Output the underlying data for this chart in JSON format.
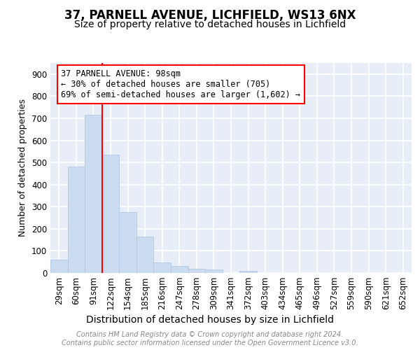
{
  "title_line1": "37, PARNELL AVENUE, LICHFIELD, WS13 6NX",
  "title_line2": "Size of property relative to detached houses in Lichfield",
  "xlabel": "Distribution of detached houses by size in Lichfield",
  "ylabel": "Number of detached properties",
  "categories": [
    "29sqm",
    "60sqm",
    "91sqm",
    "122sqm",
    "154sqm",
    "185sqm",
    "216sqm",
    "247sqm",
    "278sqm",
    "309sqm",
    "341sqm",
    "372sqm",
    "403sqm",
    "434sqm",
    "465sqm",
    "496sqm",
    "527sqm",
    "559sqm",
    "590sqm",
    "621sqm",
    "652sqm"
  ],
  "values": [
    60,
    480,
    715,
    535,
    275,
    165,
    47,
    32,
    20,
    15,
    0,
    10,
    0,
    0,
    0,
    0,
    0,
    0,
    0,
    0,
    0
  ],
  "bar_color": "#ccdcf0",
  "bar_edge_color": "#a8c4e0",
  "red_line_index": 2.5,
  "annotation_text": "37 PARNELL AVENUE: 98sqm\n← 30% of detached houses are smaller (705)\n69% of semi-detached houses are larger (1,602) →",
  "ylim": [
    0,
    950
  ],
  "yticks": [
    0,
    100,
    200,
    300,
    400,
    500,
    600,
    700,
    800,
    900
  ],
  "bg_color": "#e8eef8",
  "grid_color": "#ffffff",
  "footer_text": "Contains HM Land Registry data © Crown copyright and database right 2024.\nContains public sector information licensed under the Open Government Licence v3.0.",
  "title_fontsize": 12,
  "subtitle_fontsize": 10,
  "ylabel_fontsize": 9,
  "xlabel_fontsize": 10,
  "tick_fontsize": 8.5,
  "annot_fontsize": 8.5,
  "footer_fontsize": 7
}
